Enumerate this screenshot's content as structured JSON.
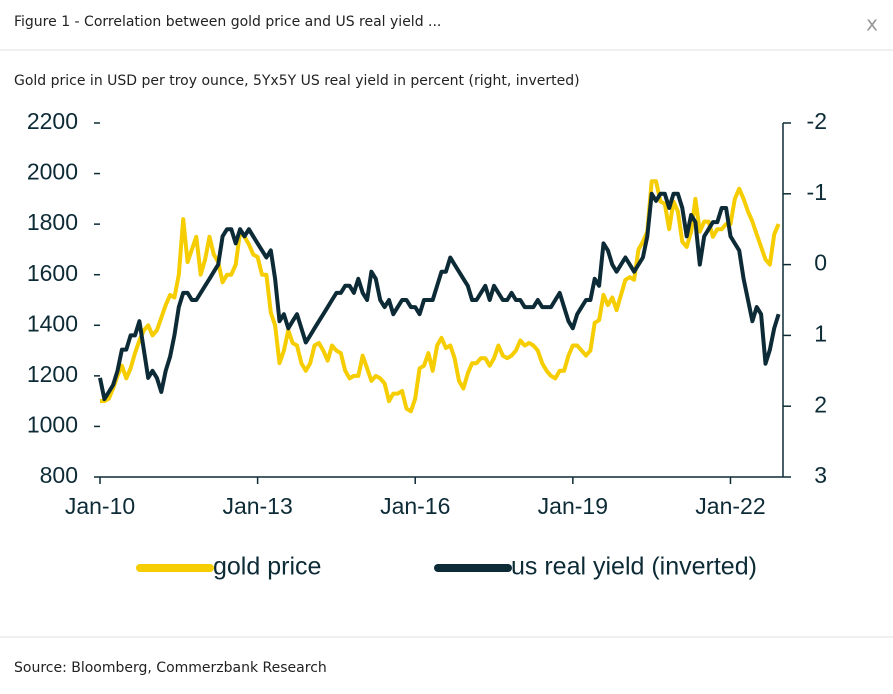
{
  "header": {
    "title": "Figure 1 - Correlation between gold price and US real yield ...",
    "close": "x"
  },
  "chart_data": {
    "type": "line",
    "subtitle": "Gold price in USD per troy ounce, 5Yx5Y US real yield in percent (right, inverted)",
    "x": [
      "2010-01",
      "2010-02",
      "2010-03",
      "2010-04",
      "2010-05",
      "2010-06",
      "2010-07",
      "2010-08",
      "2010-09",
      "2010-10",
      "2010-11",
      "2010-12",
      "2011-01",
      "2011-02",
      "2011-03",
      "2011-04",
      "2011-05",
      "2011-06",
      "2011-07",
      "2011-08",
      "2011-09",
      "2011-10",
      "2011-11",
      "2011-12",
      "2012-01",
      "2012-02",
      "2012-03",
      "2012-04",
      "2012-05",
      "2012-06",
      "2012-07",
      "2012-08",
      "2012-09",
      "2012-10",
      "2012-11",
      "2012-12",
      "2013-01",
      "2013-02",
      "2013-03",
      "2013-04",
      "2013-05",
      "2013-06",
      "2013-07",
      "2013-08",
      "2013-09",
      "2013-10",
      "2013-11",
      "2013-12",
      "2014-01",
      "2014-02",
      "2014-03",
      "2014-04",
      "2014-05",
      "2014-06",
      "2014-07",
      "2014-08",
      "2014-09",
      "2014-10",
      "2014-11",
      "2014-12",
      "2015-01",
      "2015-02",
      "2015-03",
      "2015-04",
      "2015-05",
      "2015-06",
      "2015-07",
      "2015-08",
      "2015-09",
      "2015-10",
      "2015-11",
      "2015-12",
      "2016-01",
      "2016-02",
      "2016-03",
      "2016-04",
      "2016-05",
      "2016-06",
      "2016-07",
      "2016-08",
      "2016-09",
      "2016-10",
      "2016-11",
      "2016-12",
      "2017-01",
      "2017-02",
      "2017-03",
      "2017-04",
      "2017-05",
      "2017-06",
      "2017-07",
      "2017-08",
      "2017-09",
      "2017-10",
      "2017-11",
      "2017-12",
      "2018-01",
      "2018-02",
      "2018-03",
      "2018-04",
      "2018-05",
      "2018-06",
      "2018-07",
      "2018-08",
      "2018-09",
      "2018-10",
      "2018-11",
      "2018-12",
      "2019-01",
      "2019-02",
      "2019-03",
      "2019-04",
      "2019-05",
      "2019-06",
      "2019-07",
      "2019-08",
      "2019-09",
      "2019-10",
      "2019-11",
      "2019-12",
      "2020-01",
      "2020-02",
      "2020-03",
      "2020-04",
      "2020-05",
      "2020-06",
      "2020-07",
      "2020-08",
      "2020-09",
      "2020-10",
      "2020-11",
      "2020-12",
      "2021-01",
      "2021-02",
      "2021-03",
      "2021-04",
      "2021-05",
      "2021-06",
      "2021-07",
      "2021-08",
      "2021-09",
      "2021-10",
      "2021-11",
      "2021-12",
      "2022-01",
      "2022-02",
      "2022-03",
      "2022-04",
      "2022-05",
      "2022-06",
      "2022-07",
      "2022-08",
      "2022-09",
      "2022-10",
      "2022-11",
      "2022-12"
    ],
    "series": [
      {
        "name": "gold price",
        "color": "#f5cd00",
        "axis": "y",
        "values": [
          1100,
          1100,
          1110,
          1150,
          1200,
          1240,
          1190,
          1230,
          1290,
          1340,
          1380,
          1400,
          1360,
          1380,
          1430,
          1480,
          1520,
          1510,
          1600,
          1820,
          1650,
          1700,
          1750,
          1600,
          1660,
          1750,
          1680,
          1650,
          1570,
          1600,
          1600,
          1640,
          1770,
          1750,
          1720,
          1680,
          1670,
          1600,
          1600,
          1450,
          1400,
          1250,
          1300,
          1380,
          1330,
          1320,
          1250,
          1220,
          1250,
          1320,
          1330,
          1300,
          1260,
          1320,
          1300,
          1290,
          1220,
          1190,
          1200,
          1200,
          1280,
          1230,
          1180,
          1200,
          1190,
          1170,
          1100,
          1130,
          1130,
          1140,
          1070,
          1060,
          1110,
          1230,
          1240,
          1290,
          1220,
          1320,
          1350,
          1310,
          1320,
          1270,
          1180,
          1150,
          1210,
          1250,
          1250,
          1270,
          1270,
          1240,
          1270,
          1320,
          1280,
          1270,
          1280,
          1300,
          1340,
          1320,
          1330,
          1320,
          1300,
          1250,
          1220,
          1200,
          1190,
          1220,
          1220,
          1280,
          1320,
          1320,
          1300,
          1280,
          1300,
          1410,
          1420,
          1520,
          1480,
          1510,
          1460,
          1520,
          1580,
          1590,
          1580,
          1700,
          1730,
          1770,
          1970,
          1970,
          1890,
          1880,
          1780,
          1890,
          1850,
          1730,
          1710,
          1770,
          1900,
          1770,
          1810,
          1810,
          1750,
          1780,
          1780,
          1800,
          1800,
          1900,
          1940,
          1900,
          1850,
          1810,
          1760,
          1710,
          1660,
          1640,
          1760,
          1800
        ]
      },
      {
        "name": "us real yield (inverted)",
        "color": "#0d2b36",
        "axis": "y2",
        "values": [
          1.6,
          1.9,
          1.8,
          1.7,
          1.5,
          1.2,
          1.2,
          1.0,
          1.0,
          0.8,
          1.2,
          1.6,
          1.5,
          1.6,
          1.8,
          1.5,
          1.3,
          1.0,
          0.6,
          0.4,
          0.4,
          0.5,
          0.5,
          0.4,
          0.3,
          0.2,
          0.1,
          0.0,
          -0.4,
          -0.5,
          -0.5,
          -0.3,
          -0.5,
          -0.4,
          -0.5,
          -0.4,
          -0.3,
          -0.2,
          -0.1,
          -0.2,
          0.2,
          0.8,
          0.7,
          0.9,
          0.8,
          0.7,
          0.9,
          1.1,
          1.0,
          0.9,
          0.8,
          0.7,
          0.6,
          0.5,
          0.4,
          0.4,
          0.3,
          0.3,
          0.4,
          0.2,
          0.4,
          0.5,
          0.1,
          0.2,
          0.5,
          0.6,
          0.5,
          0.7,
          0.6,
          0.5,
          0.5,
          0.6,
          0.6,
          0.7,
          0.5,
          0.5,
          0.5,
          0.3,
          0.1,
          0.1,
          -0.1,
          0.0,
          0.1,
          0.2,
          0.3,
          0.5,
          0.5,
          0.4,
          0.3,
          0.5,
          0.3,
          0.4,
          0.5,
          0.5,
          0.4,
          0.5,
          0.5,
          0.6,
          0.6,
          0.6,
          0.5,
          0.6,
          0.6,
          0.6,
          0.5,
          0.4,
          0.6,
          0.8,
          0.9,
          0.7,
          0.6,
          0.5,
          0.5,
          0.2,
          0.3,
          -0.3,
          -0.2,
          0.0,
          0.1,
          0.0,
          -0.1,
          0.0,
          0.1,
          0.0,
          -0.1,
          -0.4,
          -1.0,
          -0.9,
          -1.0,
          -1.0,
          -0.8,
          -1.0,
          -1.0,
          -0.8,
          -0.4,
          -0.7,
          -0.6,
          0.0,
          -0.4,
          -0.5,
          -0.6,
          -0.6,
          -0.8,
          -0.8,
          -0.4,
          -0.3,
          -0.2,
          0.2,
          0.5,
          0.8,
          0.6,
          0.7,
          1.4,
          1.2,
          0.9,
          0.7
        ]
      }
    ],
    "xlim": [
      "2010-01",
      "2023-01"
    ],
    "xticks": [
      {
        "value": "2010-01",
        "label": "Jan-10"
      },
      {
        "value": "2013-01",
        "label": "Jan-13"
      },
      {
        "value": "2016-01",
        "label": "Jan-16"
      },
      {
        "value": "2019-01",
        "label": "Jan-19"
      },
      {
        "value": "2022-01",
        "label": "Jan-22"
      }
    ],
    "ylim": [
      800,
      2200
    ],
    "yticks": [
      800,
      1000,
      1200,
      1400,
      1600,
      1800,
      2000,
      2200
    ],
    "y2lim": [
      3,
      -2
    ],
    "y2ticks": [
      3,
      2,
      1,
      0,
      -1,
      -2
    ],
    "legend": "bottom"
  },
  "footer": {
    "source": "Source: Bloomberg, Commerzbank Research"
  }
}
